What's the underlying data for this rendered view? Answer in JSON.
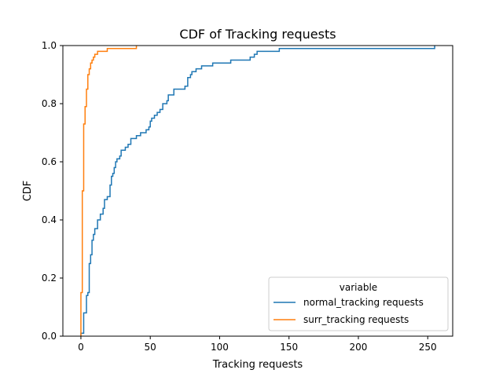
{
  "chart_data": {
    "type": "line",
    "title": "CDF of Tracking requests",
    "xlabel": "Tracking requests",
    "ylabel": "CDF",
    "xlim": [
      -13,
      268
    ],
    "ylim": [
      0,
      1
    ],
    "xticks": [
      0,
      50,
      100,
      150,
      200,
      250
    ],
    "yticks": [
      0.0,
      0.2,
      0.4,
      0.6,
      0.8,
      1.0
    ],
    "ytick_labels": [
      "0.0",
      "0.2",
      "0.4",
      "0.6",
      "0.8",
      "1.0"
    ],
    "grid": false,
    "legend": {
      "title": "variable",
      "position": "bottom-right"
    },
    "series": [
      {
        "name": "normal_tracking requests",
        "color": "#1f77b4",
        "step_points": [
          [
            0,
            0
          ],
          [
            0,
            0.01
          ],
          [
            2,
            0.01
          ],
          [
            2,
            0.08
          ],
          [
            4,
            0.08
          ],
          [
            4,
            0.14
          ],
          [
            5,
            0.14
          ],
          [
            5,
            0.15
          ],
          [
            6,
            0.15
          ],
          [
            6,
            0.25
          ],
          [
            7,
            0.25
          ],
          [
            7,
            0.28
          ],
          [
            8,
            0.28
          ],
          [
            8,
            0.33
          ],
          [
            9,
            0.33
          ],
          [
            9,
            0.35
          ],
          [
            10,
            0.35
          ],
          [
            10,
            0.37
          ],
          [
            12,
            0.37
          ],
          [
            12,
            0.4
          ],
          [
            14,
            0.4
          ],
          [
            14,
            0.42
          ],
          [
            16,
            0.42
          ],
          [
            16,
            0.44
          ],
          [
            17,
            0.44
          ],
          [
            17,
            0.47
          ],
          [
            19,
            0.47
          ],
          [
            19,
            0.48
          ],
          [
            21,
            0.48
          ],
          [
            21,
            0.52
          ],
          [
            22,
            0.52
          ],
          [
            22,
            0.55
          ],
          [
            23,
            0.55
          ],
          [
            23,
            0.56
          ],
          [
            24,
            0.56
          ],
          [
            24,
            0.58
          ],
          [
            25,
            0.58
          ],
          [
            25,
            0.6
          ],
          [
            26,
            0.6
          ],
          [
            26,
            0.61
          ],
          [
            28,
            0.61
          ],
          [
            28,
            0.62
          ],
          [
            29,
            0.62
          ],
          [
            29,
            0.64
          ],
          [
            32,
            0.64
          ],
          [
            32,
            0.65
          ],
          [
            34,
            0.65
          ],
          [
            34,
            0.66
          ],
          [
            36,
            0.66
          ],
          [
            36,
            0.68
          ],
          [
            40,
            0.68
          ],
          [
            40,
            0.69
          ],
          [
            43,
            0.69
          ],
          [
            43,
            0.7
          ],
          [
            47,
            0.7
          ],
          [
            47,
            0.71
          ],
          [
            49,
            0.71
          ],
          [
            49,
            0.72
          ],
          [
            50,
            0.72
          ],
          [
            50,
            0.74
          ],
          [
            51,
            0.74
          ],
          [
            51,
            0.75
          ],
          [
            53,
            0.75
          ],
          [
            53,
            0.76
          ],
          [
            55,
            0.76
          ],
          [
            55,
            0.77
          ],
          [
            57,
            0.77
          ],
          [
            57,
            0.78
          ],
          [
            59,
            0.78
          ],
          [
            59,
            0.8
          ],
          [
            62,
            0.8
          ],
          [
            62,
            0.81
          ],
          [
            63,
            0.81
          ],
          [
            63,
            0.83
          ],
          [
            67,
            0.83
          ],
          [
            67,
            0.85
          ],
          [
            75,
            0.85
          ],
          [
            75,
            0.86
          ],
          [
            77,
            0.86
          ],
          [
            77,
            0.89
          ],
          [
            79,
            0.89
          ],
          [
            79,
            0.9
          ],
          [
            80,
            0.9
          ],
          [
            80,
            0.91
          ],
          [
            83,
            0.91
          ],
          [
            83,
            0.92
          ],
          [
            87,
            0.92
          ],
          [
            87,
            0.93
          ],
          [
            95,
            0.93
          ],
          [
            95,
            0.94
          ],
          [
            108,
            0.94
          ],
          [
            108,
            0.95
          ],
          [
            122,
            0.95
          ],
          [
            122,
            0.96
          ],
          [
            125,
            0.96
          ],
          [
            125,
            0.97
          ],
          [
            127,
            0.97
          ],
          [
            127,
            0.98
          ],
          [
            143,
            0.98
          ],
          [
            143,
            0.99
          ],
          [
            255,
            0.99
          ],
          [
            255,
            1.0
          ]
        ]
      },
      {
        "name": "surr_tracking requests",
        "color": "#ff7f0e",
        "step_points": [
          [
            0,
            0
          ],
          [
            0,
            0.15
          ],
          [
            1,
            0.15
          ],
          [
            1,
            0.5
          ],
          [
            2,
            0.5
          ],
          [
            2,
            0.73
          ],
          [
            3,
            0.73
          ],
          [
            3,
            0.79
          ],
          [
            4,
            0.79
          ],
          [
            4,
            0.85
          ],
          [
            5,
            0.85
          ],
          [
            5,
            0.9
          ],
          [
            6,
            0.9
          ],
          [
            6,
            0.92
          ],
          [
            7,
            0.92
          ],
          [
            7,
            0.94
          ],
          [
            8,
            0.94
          ],
          [
            8,
            0.95
          ],
          [
            9,
            0.95
          ],
          [
            9,
            0.96
          ],
          [
            10,
            0.96
          ],
          [
            10,
            0.97
          ],
          [
            12,
            0.97
          ],
          [
            12,
            0.98
          ],
          [
            19,
            0.98
          ],
          [
            19,
            0.99
          ],
          [
            40,
            0.99
          ],
          [
            40,
            1.0
          ]
        ]
      }
    ]
  }
}
